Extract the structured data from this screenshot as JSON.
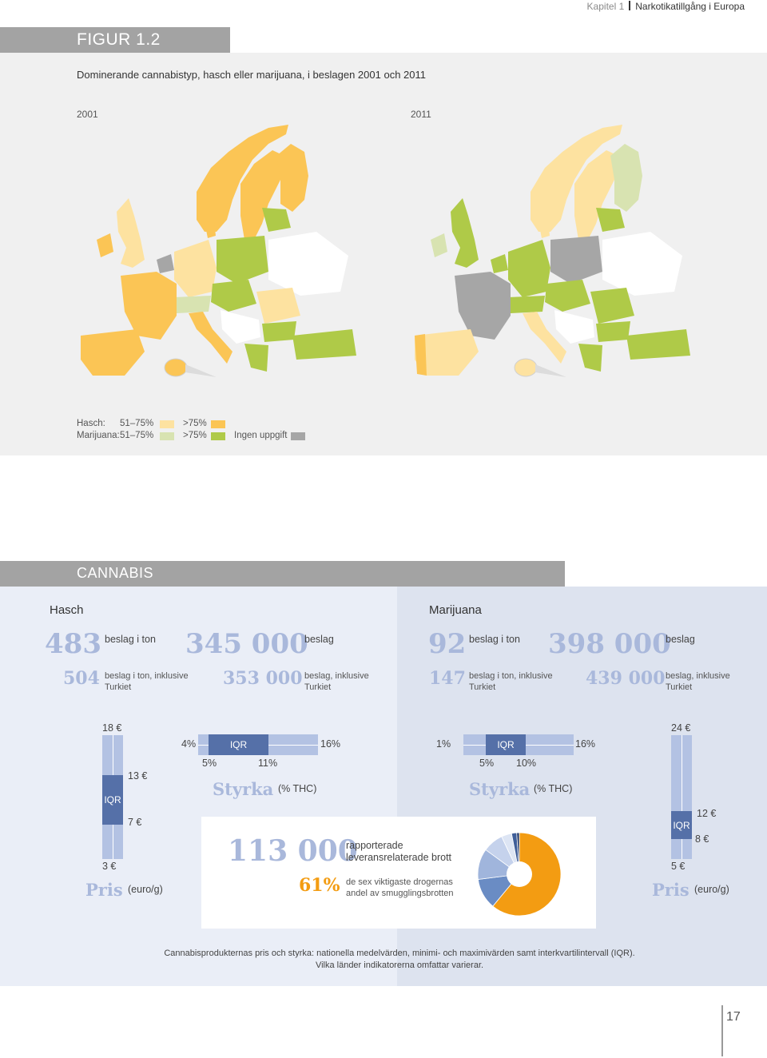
{
  "header": {
    "chapter": "Kapitel 1",
    "title": "Narkotikatillgång i Europa"
  },
  "figure": {
    "label": "FIGUR 1.2",
    "subtitle": "Dominerande cannabistyp, hasch eller marijuana, i beslagen 2001 och 2011",
    "year_left": "2001",
    "year_right": "2011",
    "legend": {
      "hasch_label": "Hasch:",
      "marijuana_label": "Marijuana:",
      "range_low": "51–75%",
      "range_high": ">75%",
      "no_data": "Ingen uppgift"
    },
    "colors": {
      "hasch_low": "#fde2a0",
      "hasch_high": "#fbc555",
      "marijuana_low": "#d8e3b1",
      "marijuana_high": "#afca48",
      "no_data": "#a6a6a6"
    }
  },
  "cannabis": {
    "section_label": "CANNABIS",
    "hasch": {
      "heading": "Hasch",
      "tons": "483",
      "tons_label": "beslag i ton",
      "seizures": "345 000",
      "seizures_label": "beslag",
      "tons_turkey": "504",
      "tons_turkey_label": "beslag i ton, inklusive Turkiet",
      "seizures_turkey": "353 000",
      "seizures_turkey_label": "beslag, inklusive Turkiet",
      "price": {
        "max": "18 €",
        "q3": "13 €",
        "q1": "7 €",
        "min": "3 €",
        "iqr": "IQR",
        "title": "Pris",
        "unit": "(euro/g)"
      },
      "potency": {
        "min": "4%",
        "max": "16%",
        "q1": "5%",
        "q3": "11%",
        "iqr": "IQR",
        "title": "Styrka",
        "unit": "(% THC)"
      }
    },
    "marijuana": {
      "heading": "Marijuana",
      "tons": "92",
      "tons_label": "beslag i ton",
      "seizures": "398 000",
      "seizures_label": "beslag",
      "tons_turkey": "147",
      "tons_turkey_label": "beslag i ton, inklusive Turkiet",
      "seizures_turkey": "439 000",
      "seizures_turkey_label": "beslag, inklusive Turkiet",
      "price": {
        "max": "24 €",
        "q3": "12 €",
        "q1": "8 €",
        "min": "5 €",
        "iqr": "IQR",
        "title": "Pris",
        "unit": "(euro/g)"
      },
      "potency": {
        "min": "1%",
        "max": "16%",
        "q1": "5%",
        "q3": "10%",
        "iqr": "IQR",
        "title": "Styrka",
        "unit": "(% THC)"
      }
    },
    "trafficking": {
      "offences": "113 000",
      "offences_label": "rapporterade leveransrelaterade brott",
      "share": "61%",
      "share_label": "de sex viktigaste drogernas andel av smugglingsbrotten",
      "pie_segments_pct": [
        61,
        12,
        12,
        8,
        4,
        2,
        1
      ],
      "pie_colors": [
        "#f39c12",
        "#6a8cc4",
        "#a0b5dc",
        "#c5d2ec",
        "#dde5f4",
        "#3f5e99",
        "#1f3566"
      ]
    }
  },
  "caption": {
    "line1": "Cannabisprodukternas pris och styrka: nationella medelvärden, minimi- och maximivärden samt interkvartilintervall (IQR).",
    "line2": "Vilka länder indikatorerna omfattar varierar."
  },
  "page_number": "17"
}
